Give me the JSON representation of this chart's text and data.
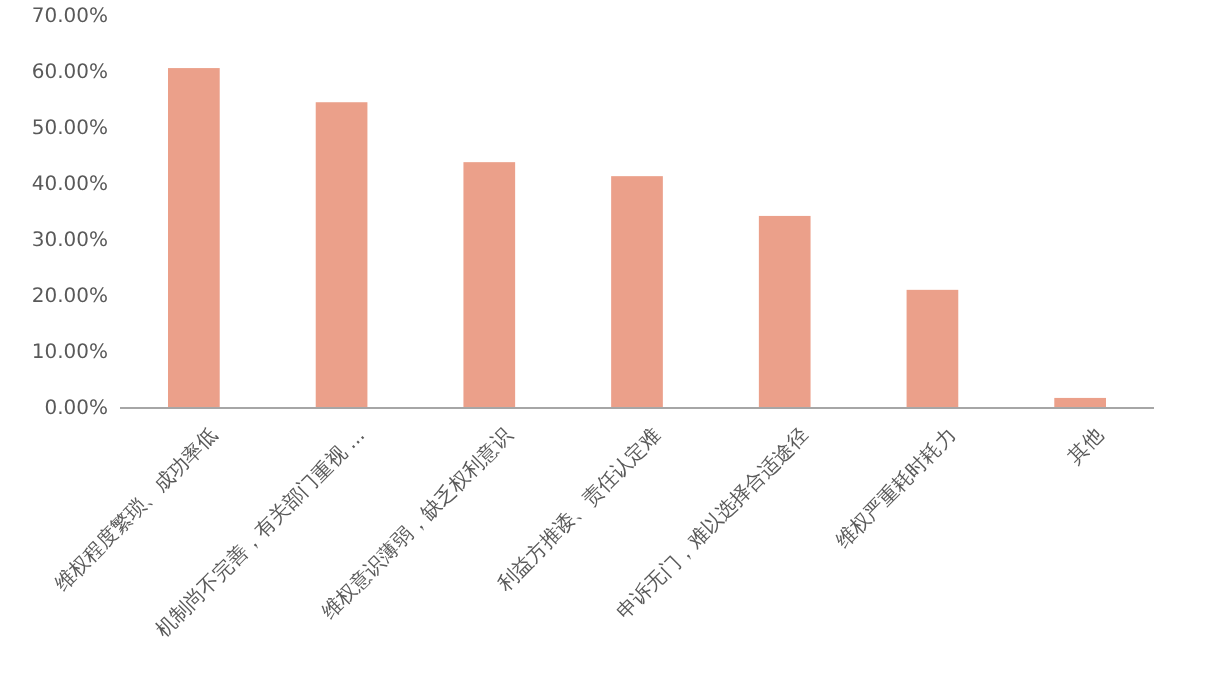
{
  "chart_data": {
    "type": "bar",
    "categories": [
      "维权程度繁琐、成功率低",
      "机制尚不完善，有关部门重视 ...",
      "维权意识薄弱，缺乏权利意识",
      "利益方推诿、责任认定难",
      "申诉无门，难以选择合适途径",
      "维权严重耗时耗力",
      "其他"
    ],
    "values": [
      60.7,
      54.6,
      43.9,
      41.4,
      34.3,
      21.1,
      1.8
    ],
    "color": "#eba08a",
    "ylim": [
      0,
      70
    ],
    "yticks": [
      {
        "value": 0,
        "label": "0.00%"
      },
      {
        "value": 10,
        "label": "10.00%"
      },
      {
        "value": 20,
        "label": "20.00%"
      },
      {
        "value": 30,
        "label": "30.00%"
      },
      {
        "value": 40,
        "label": "40.00%"
      },
      {
        "value": 50,
        "label": "50.00%"
      },
      {
        "value": 60,
        "label": "60.00%"
      },
      {
        "value": 70,
        "label": "70.00%"
      }
    ],
    "grid": false
  }
}
